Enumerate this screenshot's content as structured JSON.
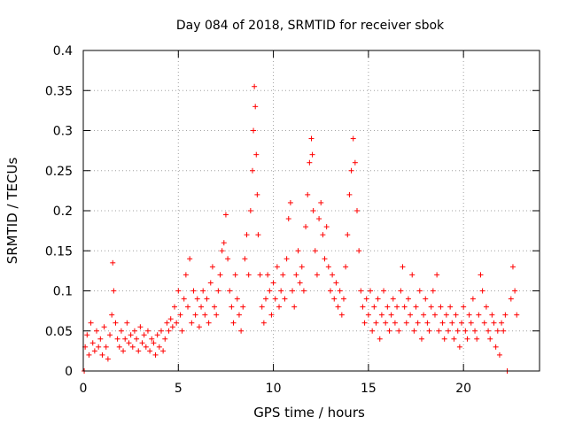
{
  "chart_data": {
    "type": "scatter",
    "title": "Day 084 of 2018, SRMTID for receiver sbok",
    "xlabel": "GPS time / hours",
    "ylabel": "SRMTID / TECUs",
    "xlim": [
      0,
      24
    ],
    "ylim": [
      0,
      0.4
    ],
    "xticks": [
      0,
      5,
      10,
      15,
      20
    ],
    "yticks": [
      0,
      0.05,
      0.1,
      0.15,
      0.2,
      0.25,
      0.3,
      0.35,
      0.4
    ],
    "xtick_labels": [
      "0",
      "5",
      "10",
      "15",
      "20"
    ],
    "ytick_labels": [
      "0",
      "0.05",
      "0.1",
      "0.15",
      "0.2",
      "0.25",
      "0.3",
      "0.35",
      "0.4"
    ],
    "grid": true,
    "marker": "+",
    "color": "#ff0000",
    "series": [
      {
        "name": "SRMTID",
        "points": [
          [
            0.05,
            0.0
          ],
          [
            0.1,
            0.03
          ],
          [
            0.2,
            0.045
          ],
          [
            0.3,
            0.02
          ],
          [
            0.4,
            0.06
          ],
          [
            0.5,
            0.035
          ],
          [
            0.6,
            0.025
          ],
          [
            0.7,
            0.05
          ],
          [
            0.8,
            0.03
          ],
          [
            0.9,
            0.04
          ],
          [
            1.0,
            0.02
          ],
          [
            1.1,
            0.055
          ],
          [
            1.2,
            0.03
          ],
          [
            1.3,
            0.015
          ],
          [
            1.4,
            0.045
          ],
          [
            1.5,
            0.07
          ],
          [
            1.55,
            0.135
          ],
          [
            1.6,
            0.1
          ],
          [
            1.7,
            0.06
          ],
          [
            1.8,
            0.04
          ],
          [
            1.9,
            0.03
          ],
          [
            2.0,
            0.05
          ],
          [
            2.1,
            0.025
          ],
          [
            2.2,
            0.04
          ],
          [
            2.3,
            0.06
          ],
          [
            2.4,
            0.035
          ],
          [
            2.5,
            0.045
          ],
          [
            2.6,
            0.03
          ],
          [
            2.7,
            0.05
          ],
          [
            2.8,
            0.04
          ],
          [
            2.9,
            0.025
          ],
          [
            3.0,
            0.055
          ],
          [
            3.1,
            0.035
          ],
          [
            3.2,
            0.045
          ],
          [
            3.3,
            0.03
          ],
          [
            3.4,
            0.05
          ],
          [
            3.5,
            0.025
          ],
          [
            3.6,
            0.04
          ],
          [
            3.7,
            0.035
          ],
          [
            3.8,
            0.02
          ],
          [
            3.9,
            0.045
          ],
          [
            4.0,
            0.03
          ],
          [
            4.1,
            0.05
          ],
          [
            4.2,
            0.025
          ],
          [
            4.3,
            0.04
          ],
          [
            4.4,
            0.06
          ],
          [
            4.5,
            0.05
          ],
          [
            4.6,
            0.065
          ],
          [
            4.7,
            0.055
          ],
          [
            4.8,
            0.08
          ],
          [
            4.9,
            0.06
          ],
          [
            5.0,
            0.1
          ],
          [
            5.1,
            0.07
          ],
          [
            5.2,
            0.05
          ],
          [
            5.3,
            0.09
          ],
          [
            5.4,
            0.12
          ],
          [
            5.5,
            0.08
          ],
          [
            5.6,
            0.14
          ],
          [
            5.7,
            0.06
          ],
          [
            5.8,
            0.1
          ],
          [
            5.9,
            0.07
          ],
          [
            6.0,
            0.09
          ],
          [
            6.1,
            0.055
          ],
          [
            6.2,
            0.08
          ],
          [
            6.3,
            0.1
          ],
          [
            6.4,
            0.07
          ],
          [
            6.5,
            0.09
          ],
          [
            6.6,
            0.06
          ],
          [
            6.7,
            0.11
          ],
          [
            6.8,
            0.13
          ],
          [
            6.9,
            0.08
          ],
          [
            7.0,
            0.07
          ],
          [
            7.1,
            0.1
          ],
          [
            7.2,
            0.12
          ],
          [
            7.3,
            0.15
          ],
          [
            7.4,
            0.16
          ],
          [
            7.5,
            0.195
          ],
          [
            7.6,
            0.14
          ],
          [
            7.7,
            0.1
          ],
          [
            7.8,
            0.08
          ],
          [
            7.9,
            0.06
          ],
          [
            8.0,
            0.12
          ],
          [
            8.1,
            0.09
          ],
          [
            8.2,
            0.07
          ],
          [
            8.3,
            0.05
          ],
          [
            8.4,
            0.08
          ],
          [
            8.5,
            0.14
          ],
          [
            8.6,
            0.17
          ],
          [
            8.7,
            0.12
          ],
          [
            8.8,
            0.2
          ],
          [
            8.9,
            0.25
          ],
          [
            8.95,
            0.3
          ],
          [
            9.0,
            0.355
          ],
          [
            9.05,
            0.33
          ],
          [
            9.1,
            0.27
          ],
          [
            9.15,
            0.22
          ],
          [
            9.2,
            0.17
          ],
          [
            9.3,
            0.12
          ],
          [
            9.4,
            0.08
          ],
          [
            9.5,
            0.06
          ],
          [
            9.6,
            0.09
          ],
          [
            9.7,
            0.12
          ],
          [
            9.8,
            0.1
          ],
          [
            9.9,
            0.07
          ],
          [
            10.0,
            0.11
          ],
          [
            10.1,
            0.09
          ],
          [
            10.2,
            0.13
          ],
          [
            10.3,
            0.08
          ],
          [
            10.4,
            0.1
          ],
          [
            10.5,
            0.12
          ],
          [
            10.6,
            0.09
          ],
          [
            10.7,
            0.14
          ],
          [
            10.8,
            0.19
          ],
          [
            10.9,
            0.21
          ],
          [
            11.0,
            0.1
          ],
          [
            11.1,
            0.08
          ],
          [
            11.2,
            0.12
          ],
          [
            11.3,
            0.15
          ],
          [
            11.4,
            0.11
          ],
          [
            11.5,
            0.13
          ],
          [
            11.6,
            0.1
          ],
          [
            11.7,
            0.18
          ],
          [
            11.8,
            0.22
          ],
          [
            11.9,
            0.26
          ],
          [
            12.0,
            0.29
          ],
          [
            12.05,
            0.27
          ],
          [
            12.1,
            0.2
          ],
          [
            12.2,
            0.15
          ],
          [
            12.3,
            0.12
          ],
          [
            12.4,
            0.19
          ],
          [
            12.5,
            0.21
          ],
          [
            12.6,
            0.17
          ],
          [
            12.7,
            0.14
          ],
          [
            12.8,
            0.18
          ],
          [
            12.9,
            0.13
          ],
          [
            13.0,
            0.1
          ],
          [
            13.1,
            0.12
          ],
          [
            13.2,
            0.09
          ],
          [
            13.3,
            0.11
          ],
          [
            13.4,
            0.08
          ],
          [
            13.5,
            0.1
          ],
          [
            13.6,
            0.07
          ],
          [
            13.7,
            0.09
          ],
          [
            13.8,
            0.13
          ],
          [
            13.9,
            0.17
          ],
          [
            14.0,
            0.22
          ],
          [
            14.1,
            0.25
          ],
          [
            14.2,
            0.29
          ],
          [
            14.3,
            0.26
          ],
          [
            14.4,
            0.2
          ],
          [
            14.5,
            0.15
          ],
          [
            14.6,
            0.1
          ],
          [
            14.7,
            0.08
          ],
          [
            14.8,
            0.06
          ],
          [
            14.9,
            0.09
          ],
          [
            15.0,
            0.07
          ],
          [
            15.1,
            0.1
          ],
          [
            15.2,
            0.05
          ],
          [
            15.3,
            0.08
          ],
          [
            15.4,
            0.06
          ],
          [
            15.5,
            0.09
          ],
          [
            15.6,
            0.04
          ],
          [
            15.7,
            0.07
          ],
          [
            15.8,
            0.1
          ],
          [
            15.9,
            0.06
          ],
          [
            16.0,
            0.08
          ],
          [
            16.1,
            0.05
          ],
          [
            16.2,
            0.07
          ],
          [
            16.3,
            0.09
          ],
          [
            16.4,
            0.06
          ],
          [
            16.5,
            0.08
          ],
          [
            16.6,
            0.05
          ],
          [
            16.7,
            0.1
          ],
          [
            16.8,
            0.13
          ],
          [
            16.9,
            0.08
          ],
          [
            17.0,
            0.06
          ],
          [
            17.1,
            0.09
          ],
          [
            17.2,
            0.07
          ],
          [
            17.3,
            0.12
          ],
          [
            17.4,
            0.05
          ],
          [
            17.5,
            0.08
          ],
          [
            17.6,
            0.06
          ],
          [
            17.7,
            0.1
          ],
          [
            17.8,
            0.04
          ],
          [
            17.9,
            0.07
          ],
          [
            18.0,
            0.09
          ],
          [
            18.1,
            0.06
          ],
          [
            18.2,
            0.05
          ],
          [
            18.3,
            0.08
          ],
          [
            18.4,
            0.1
          ],
          [
            18.5,
            0.07
          ],
          [
            18.6,
            0.12
          ],
          [
            18.7,
            0.05
          ],
          [
            18.8,
            0.08
          ],
          [
            18.9,
            0.06
          ],
          [
            19.0,
            0.04
          ],
          [
            19.1,
            0.07
          ],
          [
            19.2,
            0.05
          ],
          [
            19.3,
            0.08
          ],
          [
            19.4,
            0.06
          ],
          [
            19.5,
            0.04
          ],
          [
            19.6,
            0.07
          ],
          [
            19.7,
            0.05
          ],
          [
            19.8,
            0.03
          ],
          [
            19.9,
            0.06
          ],
          [
            20.0,
            0.08
          ],
          [
            20.1,
            0.05
          ],
          [
            20.2,
            0.04
          ],
          [
            20.3,
            0.07
          ],
          [
            20.4,
            0.06
          ],
          [
            20.5,
            0.09
          ],
          [
            20.6,
            0.05
          ],
          [
            20.7,
            0.04
          ],
          [
            20.8,
            0.07
          ],
          [
            20.9,
            0.12
          ],
          [
            21.0,
            0.1
          ],
          [
            21.1,
            0.06
          ],
          [
            21.2,
            0.08
          ],
          [
            21.3,
            0.05
          ],
          [
            21.4,
            0.04
          ],
          [
            21.5,
            0.07
          ],
          [
            21.6,
            0.06
          ],
          [
            21.7,
            0.03
          ],
          [
            21.8,
            0.05
          ],
          [
            21.9,
            0.02
          ],
          [
            22.0,
            0.06
          ],
          [
            22.1,
            0.05
          ],
          [
            22.2,
            0.07
          ],
          [
            22.3,
            0.0
          ],
          [
            22.5,
            0.09
          ],
          [
            22.6,
            0.13
          ],
          [
            22.7,
            0.1
          ],
          [
            22.8,
            0.07
          ]
        ]
      }
    ]
  }
}
